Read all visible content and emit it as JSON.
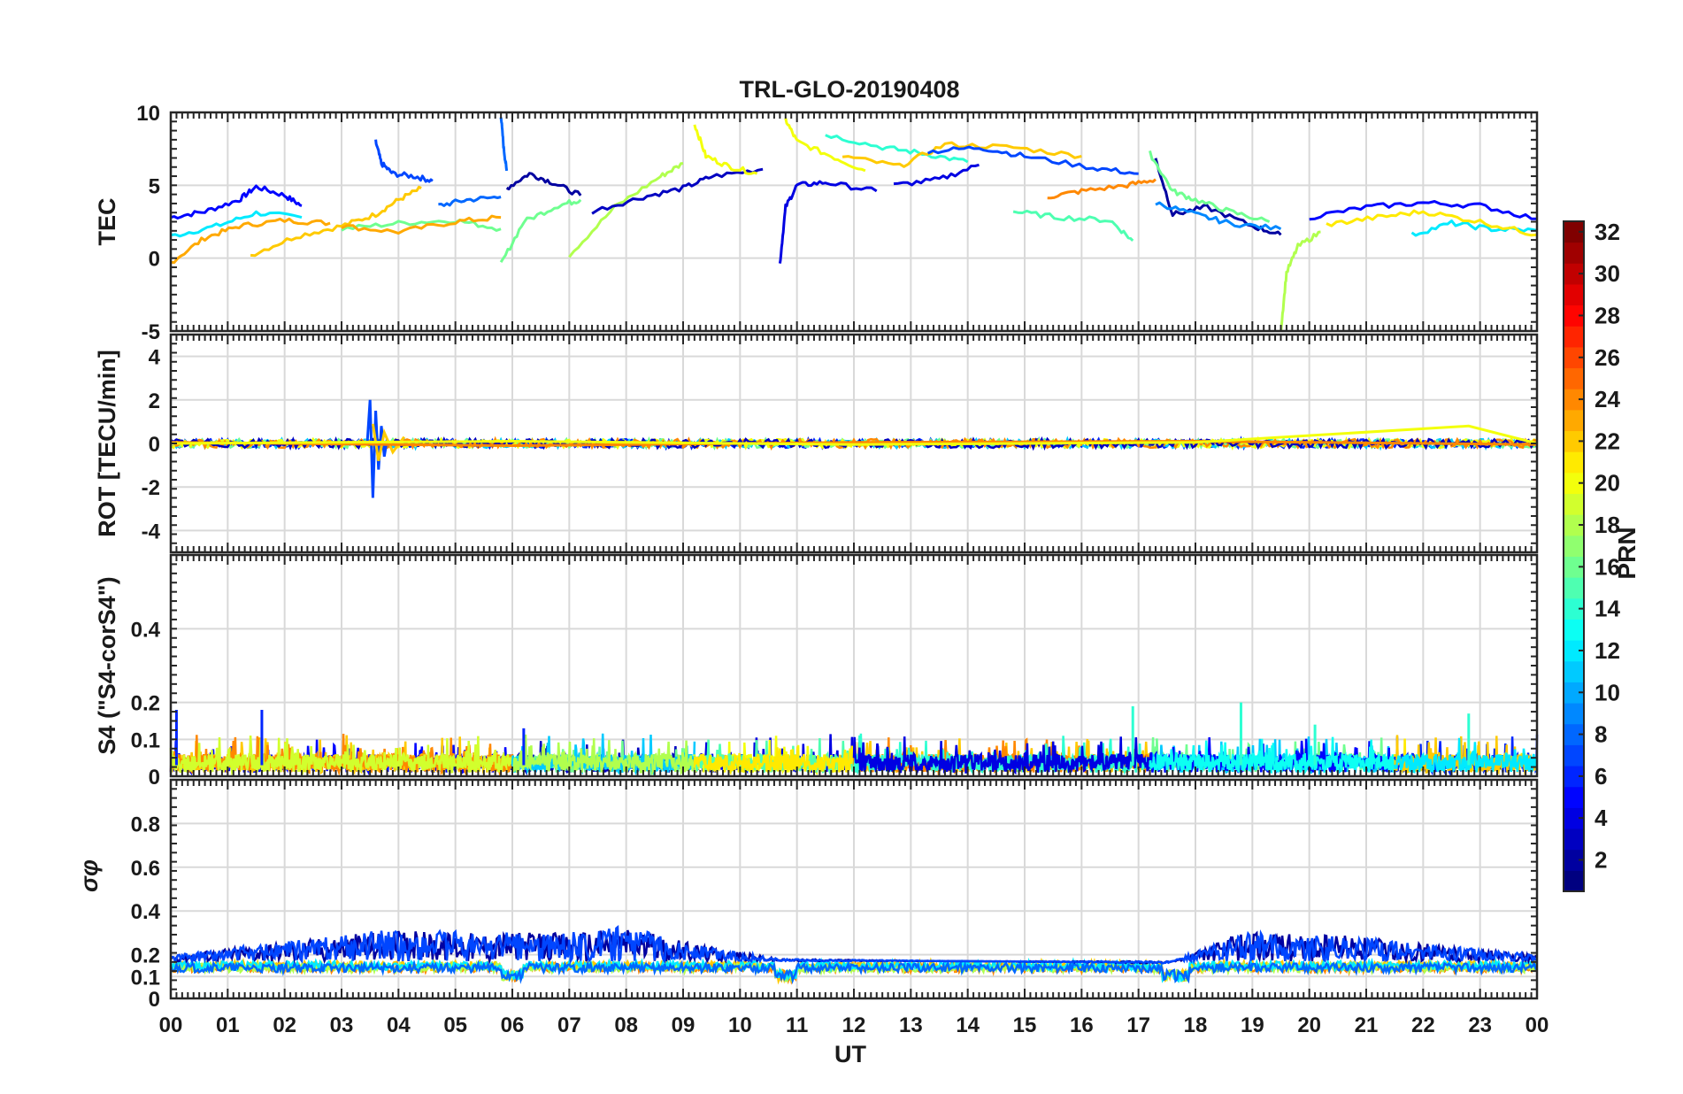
{
  "figure": {
    "title": "TRL-GLO-20190408",
    "xlabel": "UT",
    "x_tick_labels": [
      "00",
      "01",
      "02",
      "03",
      "04",
      "05",
      "06",
      "07",
      "08",
      "09",
      "10",
      "11",
      "12",
      "13",
      "14",
      "15",
      "16",
      "17",
      "18",
      "19",
      "20",
      "21",
      "22",
      "23",
      "00"
    ]
  },
  "chart_data": [
    {
      "type": "line",
      "panel": "TEC",
      "ylabel": "TEC",
      "xlim": [
        0,
        24
      ],
      "ylim": [
        -5,
        10
      ],
      "y_ticks": [
        -5,
        0,
        5,
        10
      ],
      "grid": true,
      "series_by_prn": [
        {
          "prn": 5,
          "x": [
            0,
            0.6,
            1.2,
            1.5,
            2.0,
            2.3
          ],
          "y": [
            2.8,
            3.2,
            4.0,
            4.9,
            4.3,
            3.6
          ]
        },
        {
          "prn": 12,
          "x": [
            0,
            0.8,
            1.5,
            2.3
          ],
          "y": [
            1.5,
            2.2,
            3.1,
            2.8
          ]
        },
        {
          "prn": 23,
          "x": [
            0,
            0.6,
            1.2,
            2.0,
            2.8
          ],
          "y": [
            -0.3,
            1.4,
            2.2,
            2.6,
            2.4
          ]
        },
        {
          "prn": 22,
          "x": [
            1.4,
            2.2,
            3.0,
            3.6,
            4.0,
            4.4
          ],
          "y": [
            0.2,
            1.5,
            2.2,
            3.0,
            4.0,
            4.8
          ]
        },
        {
          "prn": 7,
          "x": [
            3.6,
            3.7,
            3.9,
            4.3,
            4.6
          ],
          "y": [
            8.0,
            6.5,
            5.8,
            5.6,
            5.3
          ]
        },
        {
          "prn": 16,
          "x": [
            3.0,
            4.0,
            5.0,
            5.8
          ],
          "y": [
            2.0,
            2.4,
            2.6,
            2.0
          ]
        },
        {
          "prn": 23,
          "x": [
            3.0,
            4.0,
            5.0,
            5.8
          ],
          "y": [
            2.2,
            1.8,
            2.5,
            2.8
          ]
        },
        {
          "prn": 8,
          "x": [
            4.7,
            5.2,
            5.8
          ],
          "y": [
            3.6,
            4.0,
            4.2
          ]
        },
        {
          "prn": 8,
          "x": [
            5.8,
            5.85,
            5.9
          ],
          "y": [
            9.8,
            7.5,
            6.0
          ]
        },
        {
          "prn": 2,
          "x": [
            5.9,
            6.3,
            6.7,
            7.2
          ],
          "y": [
            4.8,
            5.8,
            5.2,
            4.3
          ]
        },
        {
          "prn": 16,
          "x": [
            5.8,
            6.2,
            6.8,
            7.2
          ],
          "y": [
            -0.4,
            2.5,
            3.6,
            4.0
          ]
        },
        {
          "prn": 18,
          "x": [
            7.0,
            7.8,
            8.6,
            9.0
          ],
          "y": [
            0.2,
            3.5,
            5.6,
            6.5
          ]
        },
        {
          "prn": 3,
          "x": [
            7.4,
            8.3,
            9.0,
            9.5,
            10.4
          ],
          "y": [
            3.2,
            4.2,
            4.8,
            5.6,
            6.1
          ]
        },
        {
          "prn": 20,
          "x": [
            9.2,
            9.4,
            9.8,
            10.3
          ],
          "y": [
            9.2,
            7.0,
            6.3,
            5.8
          ]
        },
        {
          "prn": 4,
          "x": [
            10.7,
            10.8,
            11.0,
            11.5,
            12.4
          ],
          "y": [
            -0.4,
            3.5,
            5.0,
            5.2,
            4.6
          ]
        },
        {
          "prn": 20,
          "x": [
            10.8,
            11.0,
            11.6,
            12.2
          ],
          "y": [
            9.5,
            8.0,
            7.0,
            6.0
          ]
        },
        {
          "prn": 14,
          "x": [
            11.5,
            12.5,
            13.2,
            14.0
          ],
          "y": [
            8.5,
            7.6,
            7.2,
            6.6
          ]
        },
        {
          "prn": 22,
          "x": [
            11.8,
            12.8,
            13.6,
            14.8,
            16.0
          ],
          "y": [
            7.0,
            6.3,
            7.8,
            7.6,
            7.0
          ]
        },
        {
          "prn": 7,
          "x": [
            13.3,
            14.2,
            15.0,
            16.2,
            17.0
          ],
          "y": [
            7.3,
            7.6,
            7.0,
            6.2,
            5.8
          ]
        },
        {
          "prn": 4,
          "x": [
            12.7,
            13.5,
            14.2
          ],
          "y": [
            5.0,
            5.4,
            6.4
          ]
        },
        {
          "prn": 24,
          "x": [
            15.4,
            16.0,
            16.8,
            17.3
          ],
          "y": [
            4.2,
            4.6,
            5.0,
            5.4
          ]
        },
        {
          "prn": 15,
          "x": [
            14.8,
            15.6,
            16.5,
            16.9
          ],
          "y": [
            3.2,
            2.8,
            2.6,
            1.2
          ]
        },
        {
          "prn": 2,
          "x": [
            17.3,
            17.6,
            18.2,
            19.0,
            19.5
          ],
          "y": [
            6.8,
            3.0,
            3.5,
            2.2,
            1.6
          ]
        },
        {
          "prn": 16,
          "x": [
            17.2,
            17.6,
            18.0,
            18.6,
            19.3
          ],
          "y": [
            7.2,
            4.6,
            4.0,
            3.2,
            2.5
          ]
        },
        {
          "prn": 9,
          "x": [
            17.3,
            18.0,
            18.6,
            19.5
          ],
          "y": [
            3.8,
            3.0,
            2.4,
            2.0
          ]
        },
        {
          "prn": 18,
          "x": [
            19.5,
            19.6,
            19.8,
            20.2
          ],
          "y": [
            -5.0,
            -1.0,
            0.8,
            1.8
          ]
        },
        {
          "prn": 5,
          "x": [
            20.0,
            21.0,
            22.0,
            23.0,
            24.0
          ],
          "y": [
            2.8,
            3.5,
            3.8,
            3.6,
            2.7
          ]
        },
        {
          "prn": 12,
          "x": [
            21.8,
            22.5,
            23.2,
            24.0
          ],
          "y": [
            1.6,
            2.4,
            2.0,
            1.9
          ]
        },
        {
          "prn": 21,
          "x": [
            20.3,
            21.2,
            22.0,
            23.0,
            24.0
          ],
          "y": [
            2.3,
            2.8,
            3.2,
            2.5,
            1.6
          ]
        }
      ]
    },
    {
      "type": "line",
      "panel": "ROT",
      "ylabel": "ROT [TECU/min]",
      "xlim": [
        0,
        24
      ],
      "ylim": [
        -5,
        5
      ],
      "y_ticks": [
        -4,
        -2,
        0,
        2,
        4
      ],
      "grid": true,
      "series_by_prn": [
        {
          "prn": 7,
          "x": [
            3.45,
            3.5,
            3.55,
            3.6,
            3.65,
            3.7,
            3.75,
            3.8
          ],
          "y": [
            0,
            2.0,
            -2.5,
            1.5,
            -1.2,
            0.8,
            -0.6,
            0.2
          ]
        },
        {
          "prn": 22,
          "x": [
            3.55,
            3.65,
            3.75,
            3.9,
            4.1
          ],
          "y": [
            0.9,
            -0.8,
            0.5,
            -0.4,
            0.3
          ]
        },
        {
          "prn": 24,
          "x": [
            0,
            6,
            12,
            18,
            24
          ],
          "y": [
            0.05,
            -0.1,
            0.05,
            0.1,
            -0.05
          ]
        },
        {
          "prn": 20,
          "x": [
            0,
            6,
            12,
            18,
            22.8,
            24
          ],
          "y": [
            0,
            0.1,
            -0.05,
            0.05,
            0.8,
            0
          ]
        }
      ]
    },
    {
      "type": "line",
      "panel": "S4",
      "ylabel": "S4 (\"S4-corS4\")",
      "xlim": [
        0,
        24
      ],
      "ylim": [
        0,
        0.6
      ],
      "y_ticks": [
        0,
        0.1,
        0.2,
        0.4
      ],
      "grid": true,
      "typical_range": [
        0.0,
        0.1
      ],
      "peaks": [
        {
          "x": 0.1,
          "y": 0.18
        },
        {
          "x": 1.6,
          "y": 0.18
        },
        {
          "x": 6.2,
          "y": 0.13
        },
        {
          "x": 16.9,
          "y": 0.19
        },
        {
          "x": 18.8,
          "y": 0.2
        },
        {
          "x": 20.1,
          "y": 0.14
        },
        {
          "x": 22.8,
          "y": 0.17
        }
      ]
    },
    {
      "type": "line",
      "panel": "sigma_phi",
      "ylabel": "σφ",
      "xlim": [
        0,
        24
      ],
      "ylim": [
        0,
        1
      ],
      "y_ticks": [
        0,
        0.1,
        0.2,
        0.4,
        0.6,
        0.8
      ],
      "grid": true,
      "envelope": [
        {
          "x": 0,
          "y": 0.2
        },
        {
          "x": 3.6,
          "y": 0.31
        },
        {
          "x": 6.8,
          "y": 0.3
        },
        {
          "x": 8.0,
          "y": 0.33
        },
        {
          "x": 9.0,
          "y": 0.26
        },
        {
          "x": 10.7,
          "y": 0.18
        },
        {
          "x": 17.5,
          "y": 0.16
        },
        {
          "x": 18.8,
          "y": 0.3
        },
        {
          "x": 20.5,
          "y": 0.29
        },
        {
          "x": 24,
          "y": 0.2
        }
      ],
      "baseline": 0.14
    }
  ],
  "colorbar": {
    "label": "PRN",
    "min": 1,
    "max": 32,
    "tick_labels": [
      "2",
      "4",
      "6",
      "8",
      "10",
      "12",
      "14",
      "16",
      "18",
      "20",
      "22",
      "24",
      "26",
      "28",
      "30",
      "32"
    ],
    "colormap": "jet"
  }
}
